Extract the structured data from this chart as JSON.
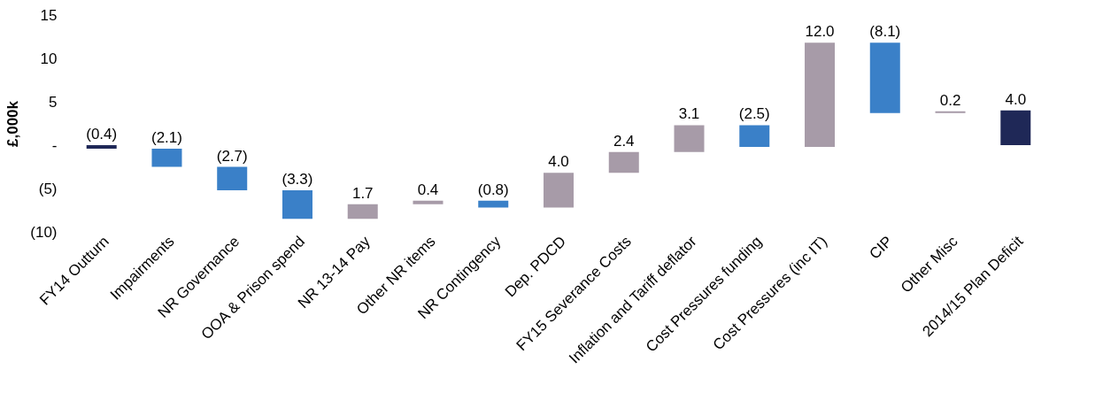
{
  "chart_data": {
    "type": "bar",
    "ylabel": "£,000k",
    "categories": [
      "FY14 Outturn",
      "Impairments",
      "NR Governance",
      "OOA & Prison spend",
      "NR 13-14 Pay",
      "Other NR items",
      "NR Contingency",
      "Dep. PDCD",
      "FY15 Severance Costs",
      "Inflation and Tariff deflator",
      "Cost Pressures funding",
      "Cost Pressures (inc IT)",
      "CIP",
      "Other Misc",
      "2014/15 Plan Deficit"
    ],
    "values": [
      -0.4,
      -2.1,
      -2.7,
      -3.3,
      1.7,
      0.4,
      -0.8,
      4.0,
      2.4,
      3.1,
      -2.5,
      12.0,
      -8.1,
      0.2,
      4.0
    ],
    "base": [
      0,
      -0.4,
      -2.5,
      -5.2,
      -8.5,
      -6.8,
      -6.4,
      -7.2,
      -3.2,
      -0.8,
      2.3,
      -0.2,
      11.8,
      3.7,
      0
    ],
    "value_labels": [
      "(0.4)",
      "(2.1)",
      "(2.7)",
      "(3.3)",
      "1.7",
      "0.4",
      "(0.8)",
      "4.0",
      "2.4",
      "3.1",
      "(2.5)",
      "12.0",
      "(8.1)",
      "0.2",
      "4.0"
    ],
    "colors": [
      "#1f2857",
      "#3a80c8",
      "#3a80c8",
      "#3a80c8",
      "#a79ba8",
      "#a79ba8",
      "#3a80c8",
      "#a79ba8",
      "#a79ba8",
      "#a79ba8",
      "#3a80c8",
      "#a79ba8",
      "#3a80c8",
      "#a79ba8",
      "#1f2857"
    ],
    "ylim": [
      -10,
      15
    ],
    "yticks": [
      15,
      10,
      5,
      {
        "value": 0,
        "label": "-"
      },
      {
        "value": -5,
        "label": "(5)"
      },
      {
        "value": -10,
        "label": "(10)"
      }
    ],
    "grid": false
  }
}
